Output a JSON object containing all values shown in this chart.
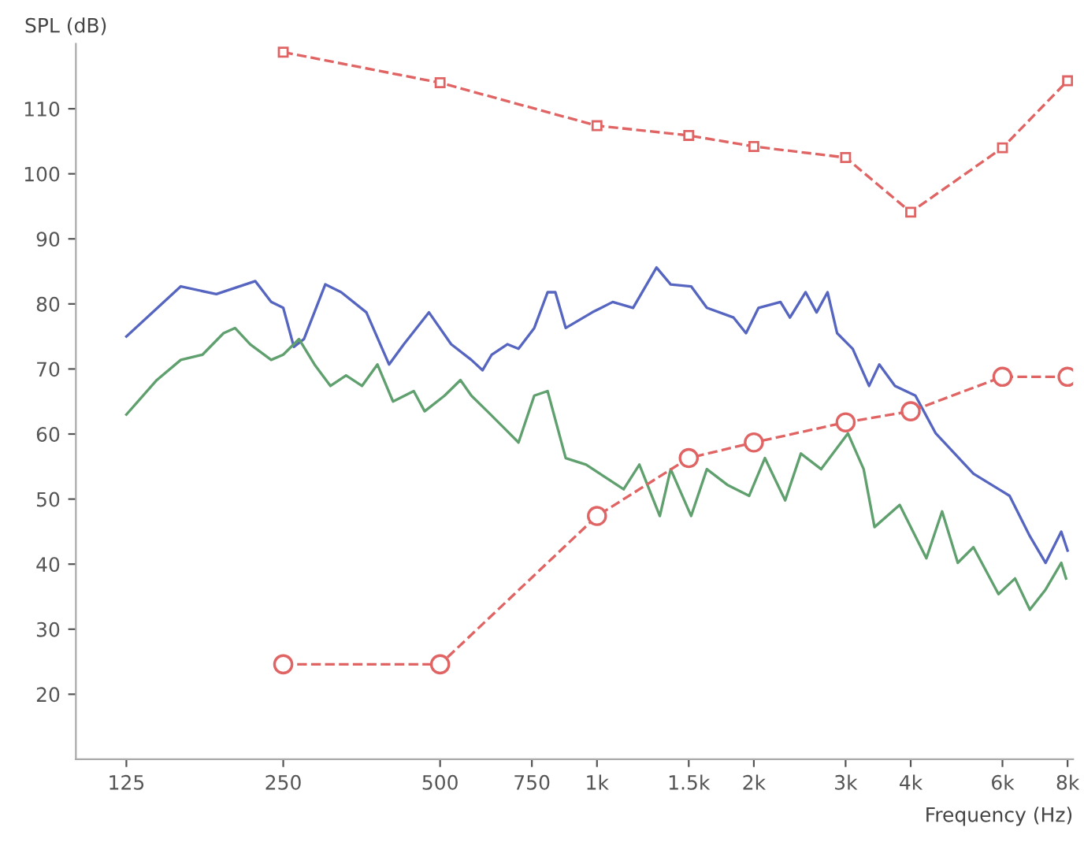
{
  "chart_data": {
    "type": "line",
    "xlabel": "Frequency (Hz)",
    "ylabel": "SPL (dB)",
    "log": "x",
    "xlim": [
      100,
      8200
    ],
    "ylim": [
      10,
      120
    ],
    "xticks": [
      125,
      250,
      500,
      750,
      {
        "value": 1000,
        "label": "1k"
      },
      {
        "value": 1500,
        "label": "1.5k"
      },
      {
        "value": 2000,
        "label": "2k"
      },
      {
        "value": 3000,
        "label": "3k"
      },
      {
        "value": 4000,
        "label": "4k"
      },
      {
        "value": 6000,
        "label": "6k"
      },
      {
        "value": 8000,
        "label": "8k"
      }
    ],
    "yticks": [
      20,
      30,
      40,
      50,
      60,
      70,
      80,
      90,
      100,
      110
    ],
    "grid": false,
    "legend": false,
    "series": [
      {
        "color": "#5565c0",
        "line_style": "solid",
        "marker": "none",
        "x": [
          125,
          159,
          186,
          221,
          237,
          250,
          262,
          274,
          301,
          323,
          361,
          399,
          426,
          476,
          525,
          574,
          603,
          628,
          673,
          707,
          758,
          804,
          832,
          871,
          979,
          1072,
          1173,
          1301,
          1385,
          1516,
          1625,
          1829,
          1932,
          2042,
          2250,
          2346,
          2514,
          2639,
          2770,
          2890,
          3096,
          3328,
          3482,
          3732,
          4084,
          4468,
          5278,
          6192,
          6772,
          7260,
          7780,
          8000
        ],
        "values": [
          75.0,
          82.7,
          81.5,
          83.5,
          80.3,
          79.4,
          73.4,
          74.6,
          83.0,
          81.8,
          78.7,
          70.7,
          73.8,
          78.7,
          73.8,
          71.4,
          69.8,
          72.2,
          73.8,
          73.1,
          76.3,
          81.8,
          81.8,
          76.3,
          78.7,
          80.3,
          79.4,
          85.6,
          83.0,
          82.7,
          79.4,
          77.9,
          75.5,
          79.4,
          80.3,
          77.9,
          81.8,
          78.7,
          81.8,
          75.5,
          73.1,
          67.4,
          70.7,
          67.4,
          65.9,
          60.1,
          53.9,
          50.5,
          44.3,
          40.2,
          45.0,
          42.1
        ]
      },
      {
        "color": "#5fa06e",
        "line_style": "solid",
        "marker": "none",
        "x": [
          125,
          143,
          159,
          175,
          192,
          202,
          216,
          237,
          250,
          268,
          287,
          308,
          330,
          354,
          379,
          406,
          445,
          467,
          510,
          547,
          574,
          616,
          660,
          707,
          758,
          804,
          871,
          953,
          1125,
          1206,
          1320,
          1385,
          1516,
          1625,
          1778,
          1959,
          2100,
          2297,
          2462,
          2693,
          3031,
          3249,
          3409,
          3810,
          4287,
          4595,
          4925,
          5278,
          5896,
          6343,
          6772,
          7260,
          7780,
          7946
        ],
        "values": [
          63.0,
          68.3,
          71.4,
          72.2,
          75.5,
          76.3,
          73.8,
          71.4,
          72.2,
          74.6,
          70.7,
          67.4,
          69.0,
          67.4,
          70.7,
          65.0,
          66.6,
          63.5,
          65.9,
          68.3,
          65.9,
          63.5,
          61.1,
          58.7,
          65.9,
          66.6,
          56.3,
          55.3,
          51.5,
          55.3,
          47.4,
          54.6,
          47.4,
          54.6,
          52.2,
          50.5,
          56.3,
          49.8,
          57.0,
          54.6,
          60.1,
          54.6,
          45.7,
          49.1,
          40.9,
          48.1,
          40.2,
          42.6,
          35.4,
          37.8,
          33.0,
          36.1,
          40.2,
          37.8
        ]
      },
      {
        "color": "#e06464",
        "line_style": "dashed",
        "marker": "square",
        "x": [
          250,
          500,
          1000,
          1500,
          2000,
          3000,
          4000,
          6000,
          8000
        ],
        "values": [
          118.7,
          114.0,
          107.4,
          105.9,
          104.2,
          102.5,
          94.1,
          104.0,
          114.3
        ]
      },
      {
        "color": "#e06464",
        "line_style": "dashed",
        "marker": "circle",
        "x": [
          250,
          500,
          1000,
          1500,
          2000,
          3000,
          4000,
          6000,
          8000
        ],
        "values": [
          24.6,
          24.6,
          47.4,
          56.3,
          58.7,
          61.8,
          63.5,
          68.8,
          68.8
        ]
      }
    ]
  }
}
